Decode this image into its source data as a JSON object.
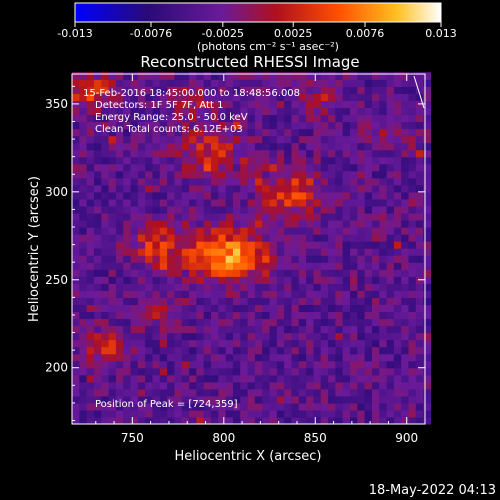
{
  "chart_data": {
    "type": "heatmap",
    "title": "Reconstructed RHESSI Image",
    "xlabel": "Heliocentric X (arcsec)",
    "ylabel": "Heliocentric Y (arcsec)",
    "xlim": [
      717,
      910
    ],
    "ylim": [
      168,
      367
    ],
    "x_ticks": [
      750,
      800,
      850,
      900
    ],
    "y_ticks": [
      200,
      250,
      300,
      350
    ],
    "colorbar": {
      "range": [
        -0.013,
        0.013
      ],
      "ticks": [
        "-0.013",
        "-0.0076",
        "-0.0025",
        "0.0025",
        "0.0076",
        "0.013"
      ],
      "unit_label": "(photons cm⁻² s⁻¹ asec⁻²)",
      "colormap": [
        "#0000ff",
        "#2a0a78",
        "#6a1a9a",
        "#b00f1e",
        "#ff5000",
        "#ffc020",
        "#ffffff"
      ]
    },
    "annotations": [
      "15-Feb-2016 18:45:00.000 to 18:48:56.008",
      "Detectors: 1F 5F 7F, Att 1",
      "Energy Range: 25.0 - 50.0 keV",
      "Clean    Total counts: 6.12E+03",
      "Position of Peak = [724,359]"
    ],
    "sources": [
      {
        "x": 800,
        "y": 262,
        "peak": 0.0125,
        "spread": 14
      },
      {
        "x": 835,
        "y": 298,
        "peak": 0.008,
        "spread": 12
      },
      {
        "x": 762,
        "y": 268,
        "peak": 0.0075,
        "spread": 11
      },
      {
        "x": 790,
        "y": 322,
        "peak": 0.0065,
        "spread": 13
      },
      {
        "x": 735,
        "y": 210,
        "peak": 0.0065,
        "spread": 9
      },
      {
        "x": 765,
        "y": 230,
        "peak": 0.0045,
        "spread": 9
      },
      {
        "x": 725,
        "y": 355,
        "peak": 0.007,
        "spread": 10
      },
      {
        "x": 780,
        "y": 350,
        "peak": 0.005,
        "spread": 9
      },
      {
        "x": 850,
        "y": 350,
        "peak": 0.0045,
        "spread": 8
      },
      {
        "x": 890,
        "y": 330,
        "peak": 0.004,
        "spread": 8
      }
    ]
  },
  "footer": {
    "timestamp": "18-May-2022 04:13"
  }
}
